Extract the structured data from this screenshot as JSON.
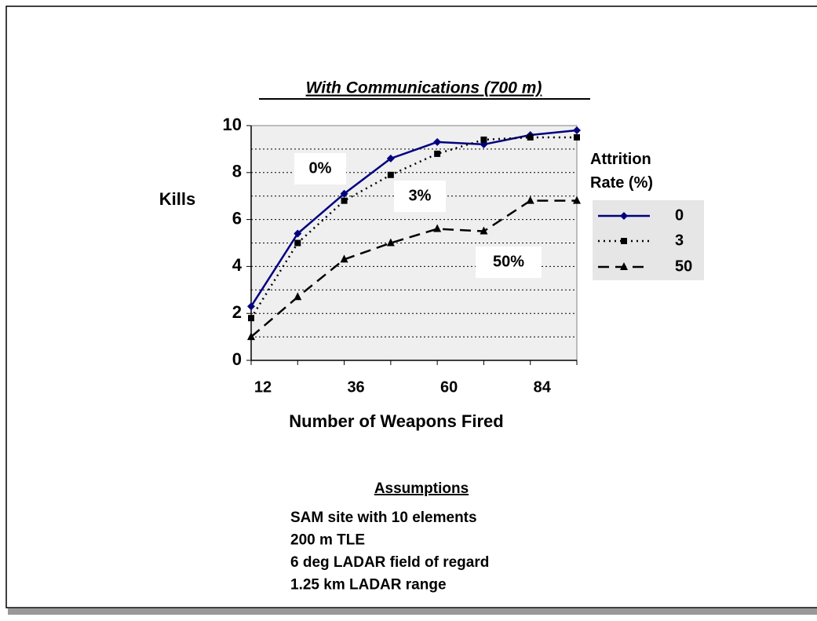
{
  "chart_data": {
    "type": "line",
    "title": "With Communications (700 m)",
    "xlabel": "Number of Weapons Fired",
    "ylabel": "Kills",
    "x": [
      12,
      24,
      36,
      48,
      60,
      72,
      84,
      96
    ],
    "xlim": [
      12,
      96
    ],
    "xticks": [
      12,
      36,
      60,
      84
    ],
    "ylim": [
      0,
      10
    ],
    "yticks": [
      0,
      2,
      4,
      6,
      8,
      10
    ],
    "ygrid": [
      1,
      2,
      3,
      4,
      5,
      6,
      7,
      8,
      9
    ],
    "grid": true,
    "legend_title": "Attrition Rate (%)",
    "legend_position": "right",
    "series": [
      {
        "name": "0",
        "color": "#000080",
        "dash": "solid",
        "marker": "diamond",
        "values": [
          2.3,
          5.4,
          7.1,
          8.6,
          9.3,
          9.2,
          9.6,
          9.8
        ]
      },
      {
        "name": "3",
        "color": "#000000",
        "dash": "dotted",
        "marker": "square",
        "values": [
          1.8,
          5.0,
          6.8,
          7.9,
          8.8,
          9.4,
          9.5,
          9.5
        ]
      },
      {
        "name": "50",
        "color": "#000000",
        "dash": "dashed",
        "marker": "triangle",
        "values": [
          1.0,
          2.7,
          4.3,
          5.0,
          5.6,
          5.5,
          6.8,
          6.8
        ]
      }
    ],
    "annotations": [
      "0%",
      "3%",
      "50%"
    ],
    "assumptions": {
      "heading": "Assumptions",
      "lines": [
        "SAM site with 10 elements",
        "200 m TLE",
        "6 deg LADAR field of regard",
        "1.25 km LADAR range"
      ]
    }
  }
}
